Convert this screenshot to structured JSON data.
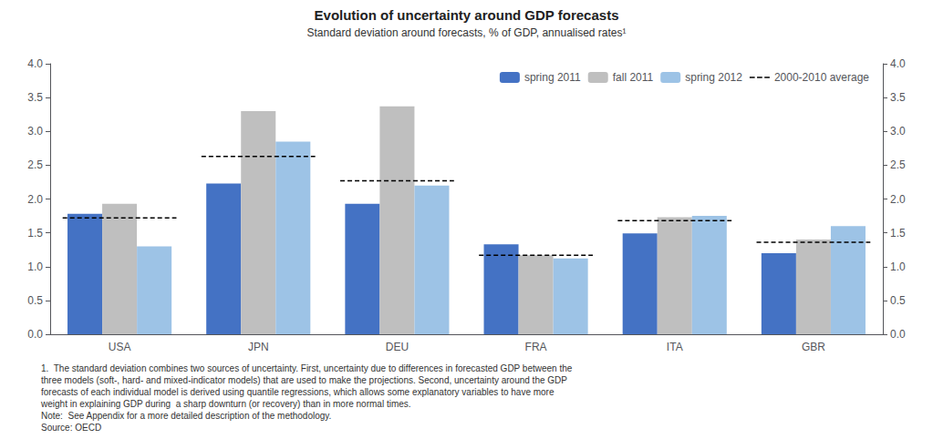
{
  "chart_data": {
    "type": "bar",
    "title": "Evolution of uncertainty around GDP forecasts",
    "subtitle": "Standard deviation around forecasts, % of GDP, annualised rates¹",
    "categories": [
      "USA",
      "JPN",
      "DEU",
      "FRA",
      "ITA",
      "GBR"
    ],
    "series": [
      {
        "name": "spring 2011",
        "type": "bar",
        "color": "#4472C4",
        "values": [
          1.78,
          2.23,
          1.93,
          1.33,
          1.49,
          1.2
        ]
      },
      {
        "name": "fall 2011",
        "type": "bar",
        "color": "#BFBFBF",
        "values": [
          1.93,
          3.3,
          3.37,
          1.17,
          1.73,
          1.4
        ]
      },
      {
        "name": "spring 2012",
        "type": "bar",
        "color": "#9DC3E6",
        "values": [
          1.3,
          2.85,
          2.2,
          1.12,
          1.75,
          1.6
        ]
      },
      {
        "name": "2000-2010 average",
        "type": "line",
        "line_style": "dashed",
        "color": "black",
        "values": [
          1.72,
          2.63,
          2.27,
          1.17,
          1.68,
          1.36
        ]
      }
    ],
    "ylim": [
      0,
      4.0
    ],
    "yticks": [
      {
        "value": 0,
        "label": "0.0"
      },
      0.5,
      {
        "value": 1,
        "label": "1.0"
      },
      1.5,
      {
        "value": 2,
        "label": "2.0"
      },
      2.5,
      {
        "value": 3,
        "label": "3.0"
      },
      3.5,
      {
        "value": 4,
        "label": "4.0"
      }
    ],
    "y2lim": [
      0,
      4.0
    ],
    "y2ticks": [
      {
        "value": 0,
        "label": "0.0"
      },
      0.5,
      {
        "value": 1,
        "label": "1.0"
      },
      1.5,
      {
        "value": 2,
        "label": "2.0"
      },
      2.5,
      {
        "value": 3,
        "label": "3.0"
      },
      3.5,
      {
        "value": 4,
        "label": "4.0"
      }
    ],
    "annotations": [
      "1.  The standard deviation combines two sources of uncertainty. First, uncertainty due to differences in forecasted GDP between the",
      "three models (soft-, hard- and mixed-indicator models) that are used to make the projections. Second, uncertainty around the GDP",
      "forecasts of each individual model is derived using quantile regressions, which allows some explanatory variables to have more",
      "weight in explaining GDP during  a sharp downturn (or recovery) than in more normal times.",
      "Note:  See Appendix for a more detailed description of the methodology.",
      "Source: OECD"
    ],
    "grid": false,
    "legend": "upper right"
  }
}
